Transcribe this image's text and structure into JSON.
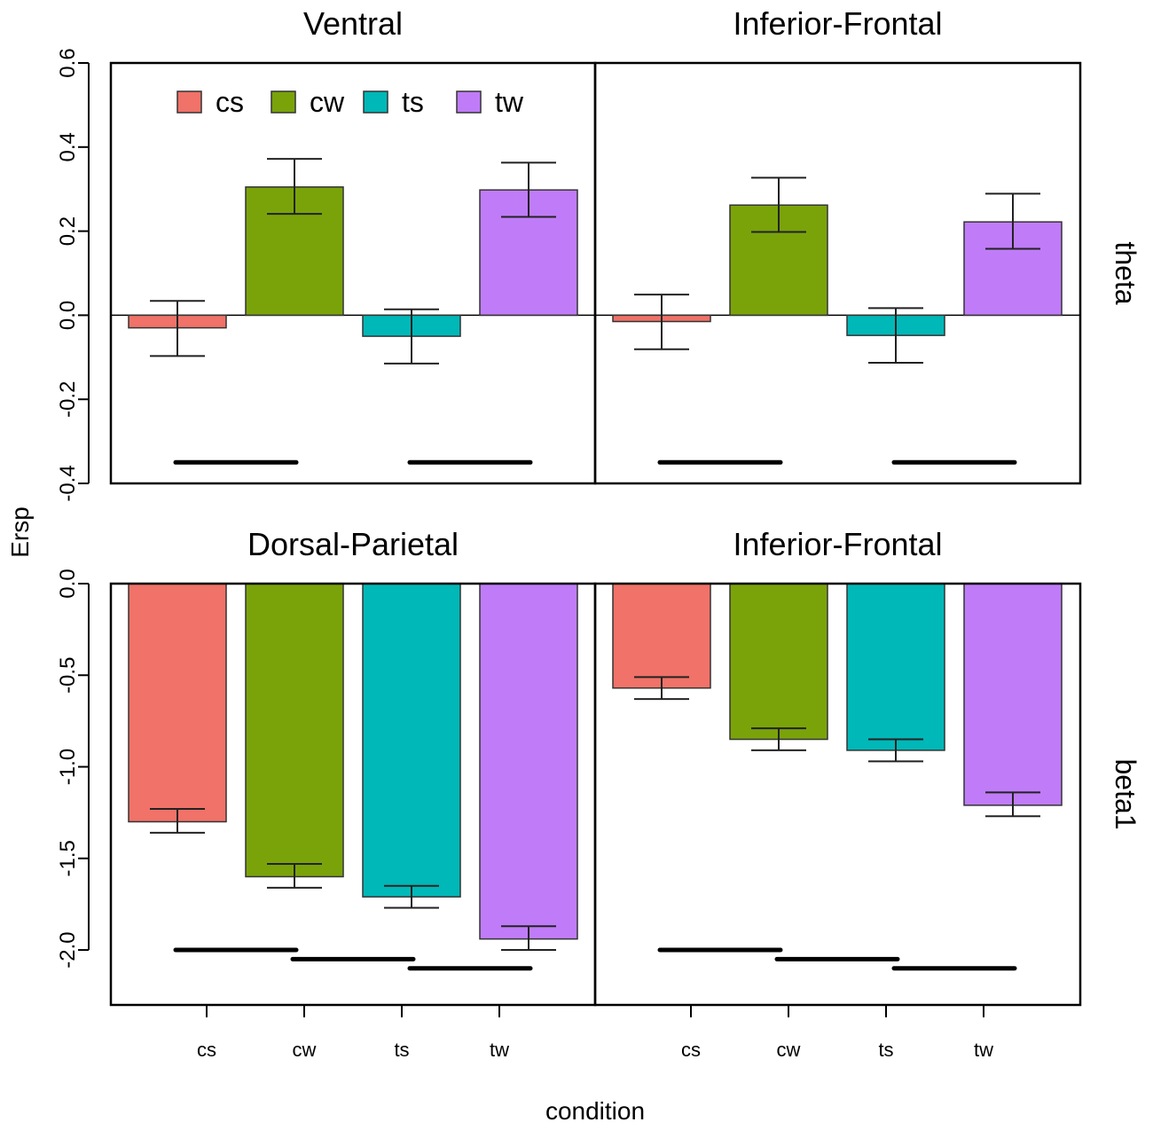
{
  "chart_data": {
    "type": "bar",
    "title": "",
    "xlabel": "condition",
    "ylabel": "Ersp",
    "categories": [
      "cs",
      "cw",
      "ts",
      "tw"
    ],
    "colors": {
      "cs": "#f07268",
      "cw": "#7aa30a",
      "ts": "#00b8b8",
      "tw": "#c07cf8"
    },
    "legend": {
      "position": "top",
      "entries": [
        "cs",
        "cw",
        "ts",
        "tw"
      ]
    },
    "rows": [
      {
        "label": "theta",
        "ylim": [
          -0.4,
          0.6
        ],
        "ticks": [
          "0.6",
          "0.4",
          "0.2",
          "0.0",
          "-0.2",
          "-0.4"
        ],
        "tick_values": [
          0.6,
          0.4,
          0.2,
          0.0,
          -0.2,
          -0.4
        ]
      },
      {
        "label": "beta1",
        "ylim": [
          -2.3,
          0.0
        ],
        "ticks": [
          "0.0",
          "-0.5",
          "-1.0",
          "-1.5",
          "-2.0"
        ],
        "tick_values": [
          0.0,
          -0.5,
          -1.0,
          -1.5,
          -2.0
        ]
      }
    ],
    "panels": [
      {
        "row": 0,
        "col": 0,
        "title": "Ventral",
        "values": [
          -0.03,
          0.305,
          -0.05,
          0.298
        ],
        "err_low": [
          -0.097,
          0.241,
          -0.115,
          0.234
        ],
        "err_high": [
          0.034,
          0.372,
          0.014,
          0.363
        ],
        "sig_bars": [
          {
            "from": "cs",
            "to": "cw",
            "y": -0.35
          },
          {
            "from": "ts",
            "to": "tw",
            "y": -0.35
          }
        ]
      },
      {
        "row": 0,
        "col": 1,
        "title": "Inferior-Frontal",
        "values": [
          -0.015,
          0.262,
          -0.048,
          0.222
        ],
        "err_low": [
          -0.081,
          0.198,
          -0.113,
          0.158
        ],
        "err_high": [
          0.049,
          0.327,
          0.017,
          0.289
        ],
        "sig_bars": [
          {
            "from": "cs",
            "to": "cw",
            "y": -0.35
          },
          {
            "from": "ts",
            "to": "tw",
            "y": -0.35
          }
        ]
      },
      {
        "row": 1,
        "col": 0,
        "title": "Dorsal-Parietal",
        "values": [
          -1.3,
          -1.6,
          -1.71,
          -1.94
        ],
        "err_low": [
          -1.36,
          -1.66,
          -1.77,
          -2.0
        ],
        "err_high": [
          -1.23,
          -1.53,
          -1.65,
          -1.87
        ],
        "sig_bars": [
          {
            "from": "cs",
            "to": "cw",
            "y": -2.0
          },
          {
            "from": "cw",
            "to": "ts",
            "y": -2.05
          },
          {
            "from": "ts",
            "to": "tw",
            "y": -2.1
          }
        ]
      },
      {
        "row": 1,
        "col": 1,
        "title": "Inferior-Frontal",
        "values": [
          -0.57,
          -0.85,
          -0.91,
          -1.21
        ],
        "err_low": [
          -0.63,
          -0.91,
          -0.97,
          -1.27
        ],
        "err_high": [
          -0.51,
          -0.79,
          -0.85,
          -1.14
        ],
        "sig_bars": [
          {
            "from": "cs",
            "to": "cw",
            "y": -2.0
          },
          {
            "from": "cw",
            "to": "ts",
            "y": -2.05
          },
          {
            "from": "ts",
            "to": "tw",
            "y": -2.1
          }
        ]
      }
    ]
  }
}
